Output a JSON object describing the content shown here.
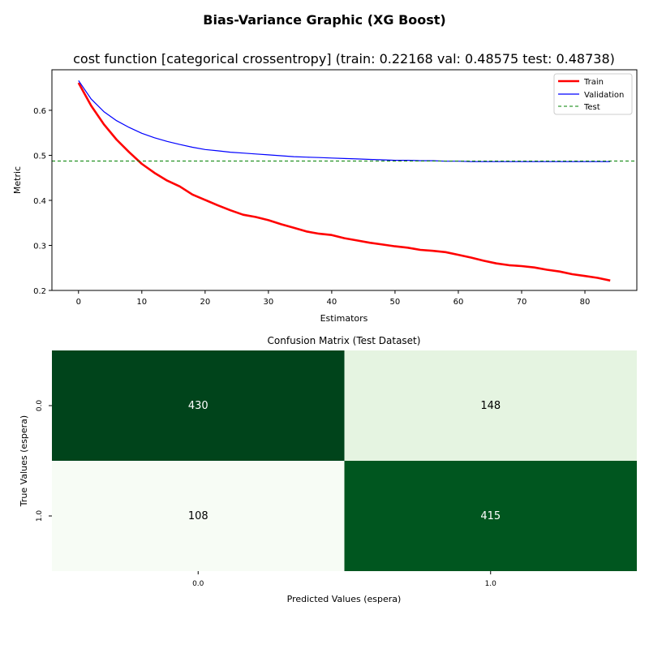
{
  "suptitle": "Bias-Variance Graphic (XG Boost)",
  "chart_data": [
    {
      "type": "line",
      "title": "cost function [categorical crossentropy] (train: 0.22168  val: 0.48575  test: 0.48738)",
      "xlabel": "Estimators",
      "ylabel": "Metric",
      "xlim": [
        -4.2,
        88.2
      ],
      "ylim": [
        0.2,
        0.69
      ],
      "xticks": [
        0,
        10,
        20,
        30,
        40,
        50,
        60,
        70,
        80
      ],
      "yticks": [
        0.2,
        0.3,
        0.4,
        0.5,
        0.6
      ],
      "legend_position": "top-right",
      "series": [
        {
          "name": "Train",
          "color": "#ff0000",
          "style": "solid-thick",
          "x": [
            0,
            2,
            4,
            6,
            8,
            10,
            12,
            14,
            16,
            18,
            20,
            22,
            24,
            26,
            28,
            30,
            32,
            34,
            36,
            38,
            40,
            42,
            44,
            46,
            48,
            50,
            52,
            54,
            56,
            58,
            60,
            62,
            64,
            66,
            68,
            70,
            72,
            74,
            76,
            78,
            80,
            82,
            84
          ],
          "values": [
            0.661,
            0.61,
            0.569,
            0.535,
            0.507,
            0.481,
            0.461,
            0.444,
            0.431,
            0.413,
            0.401,
            0.389,
            0.378,
            0.368,
            0.363,
            0.356,
            0.347,
            0.339,
            0.331,
            0.326,
            0.323,
            0.316,
            0.311,
            0.306,
            0.302,
            0.298,
            0.295,
            0.29,
            0.288,
            0.285,
            0.279,
            0.273,
            0.266,
            0.26,
            0.256,
            0.254,
            0.251,
            0.246,
            0.242,
            0.236,
            0.232,
            0.228,
            0.222
          ]
        },
        {
          "name": "Validation",
          "color": "#0000ff",
          "style": "solid-thin",
          "x": [
            0,
            2,
            4,
            6,
            8,
            10,
            12,
            14,
            16,
            18,
            20,
            22,
            24,
            26,
            28,
            30,
            32,
            34,
            36,
            38,
            40,
            42,
            44,
            46,
            48,
            50,
            52,
            54,
            56,
            58,
            60,
            62,
            64,
            66,
            68,
            70,
            72,
            74,
            76,
            78,
            80,
            82,
            84
          ],
          "values": [
            0.666,
            0.625,
            0.597,
            0.577,
            0.562,
            0.549,
            0.539,
            0.531,
            0.524,
            0.518,
            0.513,
            0.51,
            0.507,
            0.505,
            0.503,
            0.501,
            0.499,
            0.497,
            0.496,
            0.495,
            0.494,
            0.493,
            0.492,
            0.491,
            0.49,
            0.489,
            0.489,
            0.488,
            0.488,
            0.487,
            0.487,
            0.486,
            0.486,
            0.486,
            0.486,
            0.486,
            0.486,
            0.486,
            0.486,
            0.486,
            0.486,
            0.486,
            0.486
          ]
        },
        {
          "name": "Test",
          "color": "#008000",
          "style": "dashed",
          "constant": 0.48738
        }
      ]
    },
    {
      "type": "heatmap",
      "title": "Confusion Matrix (Test Dataset)",
      "xlabel": "Predicted Values (espera)",
      "ylabel": "True Values (espera)",
      "x_categories": [
        "0.0",
        "1.0"
      ],
      "y_categories": [
        "0.0",
        "1.0"
      ],
      "values": [
        [
          430,
          148
        ],
        [
          108,
          415
        ]
      ],
      "colormap": "Greens",
      "cell_colors": [
        [
          "#00441b",
          "#e5f4e1"
        ],
        [
          "#f7fcf5",
          "#00561f"
        ]
      ],
      "text_colors": [
        [
          "#ffffff",
          "#000000"
        ],
        [
          "#000000",
          "#ffffff"
        ]
      ]
    }
  ]
}
